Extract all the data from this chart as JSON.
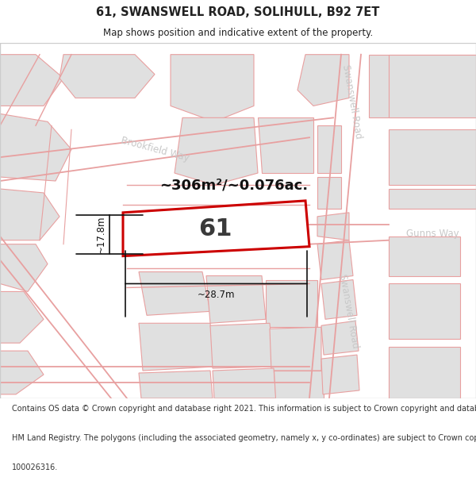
{
  "title": "61, SWANSWELL ROAD, SOLIHULL, B92 7ET",
  "subtitle": "Map shows position and indicative extent of the property.",
  "footer_lines": [
    "Contains OS data © Crown copyright and database right 2021. This information is subject to Crown copyright and database rights 2023 and is reproduced with the permission of",
    "HM Land Registry. The polygons (including the associated geometry, namely x, y co-ordinates) are subject to Crown copyright and database rights 2023 Ordnance Survey",
    "100026316."
  ],
  "area_label": "~306m²/~0.076ac.",
  "property_number": "61",
  "width_label": "~28.7m",
  "height_label": "~17.8m",
  "map_bg": "#f0f0f0",
  "block_fill": "#e0e0e0",
  "block_fill2": "#d8d8d8",
  "road_stroke": "#e8a0a0",
  "property_stroke": "#cc0000",
  "street_label_color": "#c8c8c8",
  "dim_color": "#111111",
  "title_color": "#222222",
  "footer_color": "#333333"
}
